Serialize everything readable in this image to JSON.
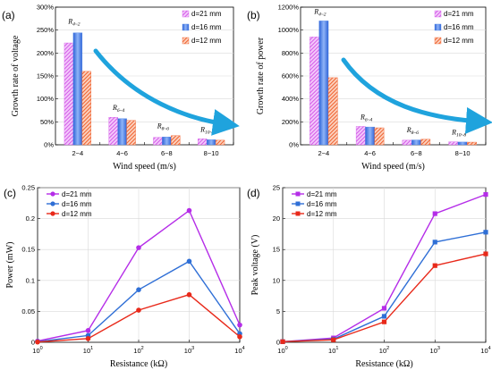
{
  "chart_data": [
    {
      "id": "a",
      "panel_label": "(a)",
      "type": "bar",
      "xlabel": "Wind speed (m/s)",
      "ylabel": "Growth rate of  voltage",
      "categories": [
        "2~4",
        "4~6",
        "6~8",
        "8~10"
      ],
      "ylim": [
        0,
        300
      ],
      "yticks": [
        "0%",
        "50%",
        "100%",
        "150%",
        "200%",
        "250%",
        "300%"
      ],
      "grid": true,
      "legend_position": "top-right",
      "annotations": [
        {
          "base": "R",
          "sub": "4~2",
          "category": 0
        },
        {
          "base": "R",
          "sub": "6~4",
          "category": 1
        },
        {
          "base": "R",
          "sub": "8~6",
          "category": 2
        },
        {
          "base": "R",
          "sub": "10~8",
          "category": 3
        }
      ],
      "series": [
        {
          "name": "d=21 mm",
          "color": "#d45be8",
          "pattern": "hatch",
          "values": [
            222,
            60,
            16,
            13
          ]
        },
        {
          "name": "d=16 mm",
          "color": "#4d84e6",
          "pattern": "solid",
          "values": [
            244,
            57,
            17,
            11
          ]
        },
        {
          "name": "d=12 mm",
          "color": "#f0612e",
          "pattern": "hatch",
          "values": [
            160,
            53,
            20,
            10
          ]
        }
      ]
    },
    {
      "id": "b",
      "panel_label": "(b)",
      "type": "bar",
      "xlabel": "Wind speed (m/s)",
      "ylabel": "Growth rate of  power",
      "categories": [
        "2~4",
        "4~6",
        "6~8",
        "8~10"
      ],
      "ylim": [
        0,
        1200
      ],
      "yticks": [
        "0%",
        "200%",
        "400%",
        "600%",
        "800%",
        "1000%",
        "1200%"
      ],
      "grid": true,
      "legend_position": "top-right",
      "annotations": [
        {
          "base": "R",
          "sub": "4~2",
          "category": 0
        },
        {
          "base": "R",
          "sub": "6~4",
          "category": 1
        },
        {
          "base": "R",
          "sub": "8~6",
          "category": 2
        },
        {
          "base": "R",
          "sub": "10~8",
          "category": 3
        }
      ],
      "series": [
        {
          "name": "d=21 mm",
          "color": "#d45be8",
          "pattern": "hatch",
          "values": [
            940,
            160,
            40,
            26
          ]
        },
        {
          "name": "d=16 mm",
          "color": "#4d84e6",
          "pattern": "solid",
          "values": [
            1080,
            155,
            42,
            24
          ]
        },
        {
          "name": "d=12 mm",
          "color": "#f0612e",
          "pattern": "hatch",
          "values": [
            585,
            148,
            48,
            23
          ]
        }
      ]
    },
    {
      "id": "c",
      "panel_label": "(c)",
      "type": "line",
      "xlabel": "Resistance (kΩ)",
      "ylabel": "Power (mW)",
      "xscale": "log",
      "x": [
        1,
        10,
        100,
        1000,
        10000
      ],
      "xticks": [
        {
          "base": "10",
          "exp": "0"
        },
        {
          "base": "10",
          "exp": "1"
        },
        {
          "base": "10",
          "exp": "2"
        },
        {
          "base": "10",
          "exp": "3"
        },
        {
          "base": "10",
          "exp": "4"
        }
      ],
      "ylim": [
        0,
        0.25
      ],
      "yticks": [
        "0",
        "0.05",
        "0.1",
        "0.15",
        "0.2",
        "0.25"
      ],
      "grid": true,
      "legend_position": "top-left",
      "marker": "circle",
      "series": [
        {
          "name": "d=21 mm",
          "color": "#b52de8",
          "values": [
            0.002,
            0.019,
            0.153,
            0.213,
            0.028
          ]
        },
        {
          "name": "d=16 mm",
          "color": "#2f6fd6",
          "values": [
            0.001,
            0.011,
            0.085,
            0.131,
            0.014
          ]
        },
        {
          "name": "d=12 mm",
          "color": "#e8291a",
          "values": [
            0.0005,
            0.006,
            0.052,
            0.077,
            0.009
          ]
        }
      ]
    },
    {
      "id": "d",
      "panel_label": "(d)",
      "type": "line",
      "xlabel": "Resistance (kΩ)",
      "ylabel": "Peak voltage (V)",
      "xscale": "log",
      "x": [
        1,
        10,
        100,
        1000,
        10000
      ],
      "xticks": [
        {
          "base": "10",
          "exp": "0"
        },
        {
          "base": "10",
          "exp": "1"
        },
        {
          "base": "10",
          "exp": "2"
        },
        {
          "base": "10",
          "exp": "3"
        },
        {
          "base": "10",
          "exp": "4"
        }
      ],
      "ylim": [
        0,
        25
      ],
      "yticks": [
        "0",
        "5",
        "10",
        "15",
        "20",
        "25"
      ],
      "grid": true,
      "legend_position": "top-left",
      "marker": "square",
      "series": [
        {
          "name": "d=21 mm",
          "color": "#b52de8",
          "values": [
            0.1,
            0.7,
            5.5,
            20.8,
            23.9
          ]
        },
        {
          "name": "d=16 mm",
          "color": "#2f6fd6",
          "values": [
            0.1,
            0.5,
            4.2,
            16.2,
            17.8
          ]
        },
        {
          "name": "d=12 mm",
          "color": "#e8291a",
          "values": [
            0.1,
            0.4,
            3.3,
            12.4,
            14.3
          ]
        }
      ]
    }
  ],
  "colors": {
    "arrow": "#1fa3dd",
    "grid": "#d9d9d9"
  }
}
